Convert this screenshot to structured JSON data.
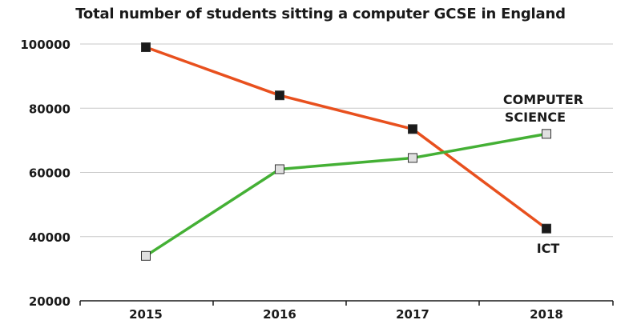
{
  "chart_data": {
    "type": "line",
    "title": "Total number of students sitting a computer GCSE in England",
    "xlabel": "",
    "ylabel": "",
    "categories": [
      "2015",
      "2016",
      "2017",
      "2018"
    ],
    "ylim": [
      20000,
      100000
    ],
    "yticks": [
      20000,
      40000,
      60000,
      80000,
      100000
    ],
    "grid": true,
    "series": [
      {
        "name": "ICT",
        "values": [
          99000,
          84000,
          73500,
          42500
        ],
        "color": "#e8501e",
        "marker_fill": "#1a1a1a"
      },
      {
        "name": "COMPUTER SCIENCE",
        "label_lines": [
          "COMPUTER",
          "SCIENCE"
        ],
        "values": [
          34000,
          61000,
          64500,
          72000
        ],
        "color": "#44b035",
        "marker_fill": "#e0e0e0"
      }
    ]
  }
}
